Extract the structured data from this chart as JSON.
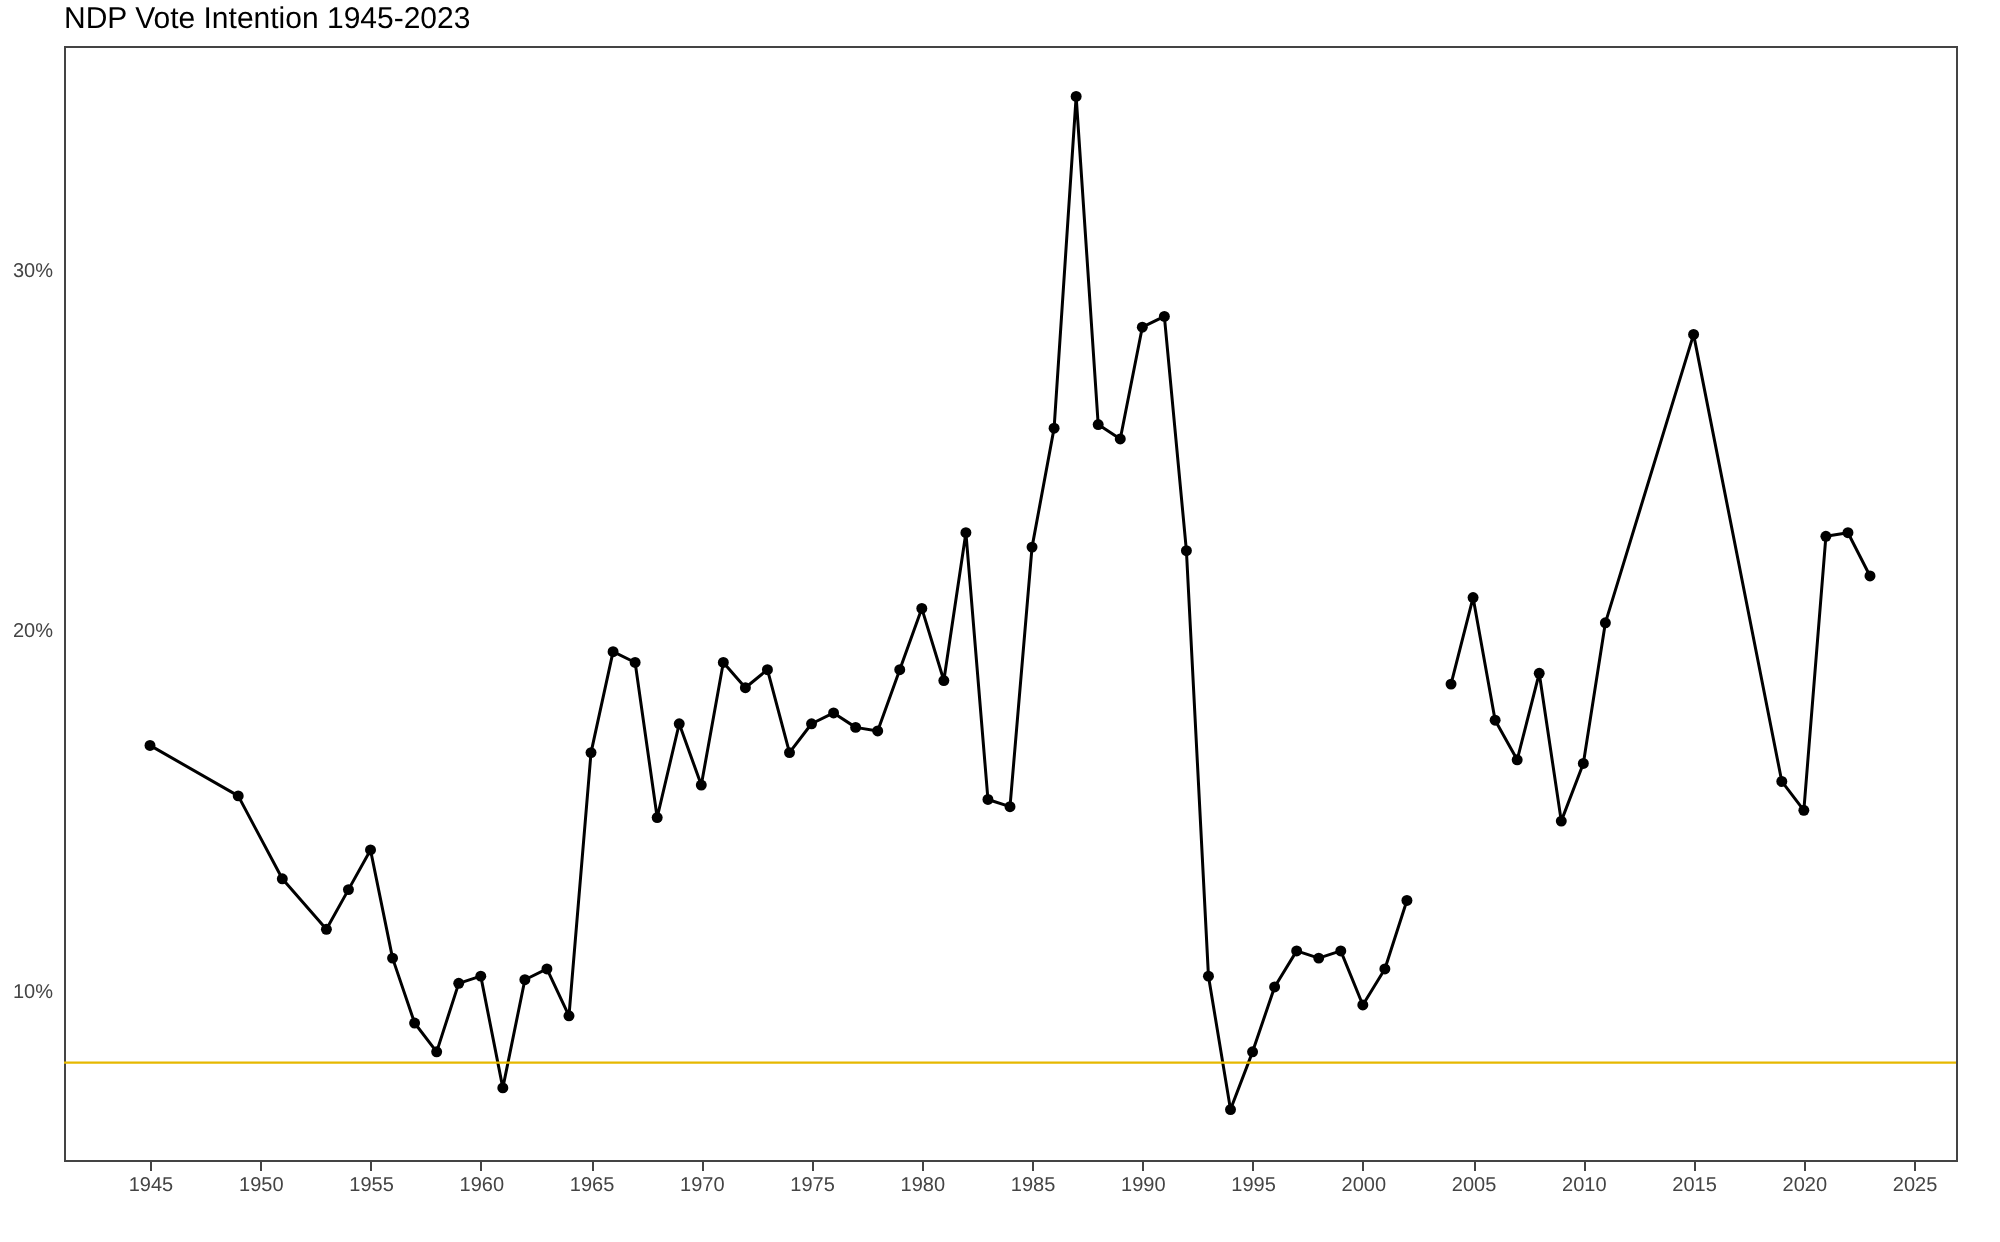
{
  "chart_data": {
    "type": "line",
    "title": "NDP Vote Intention 1945-2023",
    "x": [
      1945,
      1949,
      1951,
      1953,
      1954,
      1955,
      1956,
      1957,
      1958,
      1959,
      1960,
      1961,
      1962,
      1963,
      1964,
      1965,
      1966,
      1967,
      1968,
      1969,
      1970,
      1971,
      1972,
      1973,
      1974,
      1975,
      1976,
      1977,
      1978,
      1979,
      1980,
      1981,
      1982,
      1983,
      1984,
      1985,
      1986,
      1987,
      1988,
      1989,
      1990,
      1991,
      1992,
      1993,
      1994,
      1995,
      1996,
      1997,
      1998,
      1999,
      2000,
      2001,
      2002,
      2003,
      2004,
      2005,
      2006,
      2007,
      2008,
      2009,
      2010,
      2011,
      2015,
      2019,
      2020,
      2021,
      2022,
      2023
    ],
    "series": [
      {
        "color": "#000000",
        "values": [
          16.8,
          15.4,
          13.1,
          11.7,
          12.8,
          13.9,
          10.9,
          9.1,
          8.3,
          10.2,
          10.4,
          7.3,
          10.3,
          10.6,
          9.3,
          16.6,
          19.4,
          19.1,
          14.8,
          17.4,
          15.7,
          19.1,
          18.4,
          18.9,
          16.6,
          17.4,
          17.7,
          17.3,
          17.2,
          18.9,
          20.6,
          18.6,
          22.7,
          15.3,
          15.1,
          22.3,
          25.6,
          34.8,
          25.7,
          25.3,
          28.4,
          28.7,
          22.2,
          10.4,
          6.7,
          8.3,
          10.1,
          11.1,
          10.9,
          11.1,
          9.6,
          10.6,
          12.5,
          null,
          18.5,
          20.9,
          17.5,
          16.4,
          18.8,
          14.7,
          16.3,
          20.2,
          28.2,
          15.8,
          15.0,
          22.6,
          22.7,
          21.5
        ]
      }
    ],
    "xlim": [
      1941.1,
      2026.9
    ],
    "xticks": [
      1945,
      1950,
      1955,
      1960,
      1965,
      1970,
      1975,
      1980,
      1985,
      1990,
      1995,
      2000,
      2005,
      2010,
      2015,
      2020,
      2025
    ],
    "ylim": [
      5.3,
      36.2
    ],
    "yticks": [
      {
        "value": 10,
        "label": "10%"
      },
      {
        "value": 20,
        "label": "20%"
      },
      {
        "value": 30,
        "label": "30%"
      }
    ],
    "ref_lines": [
      {
        "axis": "y",
        "value": 8,
        "color": "#e6b800"
      }
    ],
    "marker": "circle",
    "grid": false
  }
}
